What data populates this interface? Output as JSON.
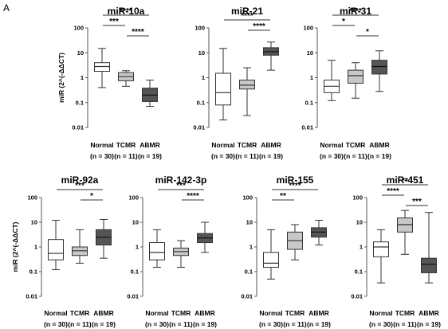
{
  "figure": {
    "panel_letter": "A",
    "ylabel": "miR (2^(-ΔΔCT)",
    "box_colors": {
      "Normal": "#ffffff",
      "TCMR": "#c8c8c8",
      "ABMR": "#555555"
    }
  },
  "chart_data": [
    {
      "type": "boxplot",
      "title": "miR-10a",
      "ylabel": "miR (2^(-ΔΔCT)",
      "yscale": "log",
      "ylim": [
        0.01,
        100
      ],
      "yticks": [
        "100",
        "10",
        "1",
        "0.1",
        "0.01"
      ],
      "categories": [
        "Normal",
        "TCMR",
        "ABMR"
      ],
      "n_labels": [
        "(n = 30)",
        "(n = 11)",
        "(n = 19)"
      ],
      "boxes": [
        {
          "name": "Normal",
          "min": 0.4,
          "q1": 1.8,
          "median": 2.8,
          "q3": 4.0,
          "max": 15
        },
        {
          "name": "TCMR",
          "min": 0.45,
          "q1": 0.75,
          "median": 1.1,
          "q3": 1.6,
          "max": 1.9
        },
        {
          "name": "ABMR",
          "min": 0.07,
          "q1": 0.11,
          "median": 0.2,
          "q3": 0.38,
          "max": 0.8
        }
      ],
      "significance": [
        {
          "from": 0,
          "to": 2,
          "label": "****"
        },
        {
          "from": 0,
          "to": 1,
          "label": "***"
        },
        {
          "from": 1,
          "to": 2,
          "label": "****"
        }
      ]
    },
    {
      "type": "boxplot",
      "title": "miR-21",
      "yscale": "log",
      "ylim": [
        0.01,
        100
      ],
      "yticks": [
        "100",
        "10",
        "1",
        "0.1",
        "0.01"
      ],
      "categories": [
        "Normal",
        "TCMR",
        "ABMR"
      ],
      "n_labels": [
        "(n = 30)",
        "(n = 11)",
        "(n = 19)"
      ],
      "boxes": [
        {
          "name": "Normal",
          "min": 0.02,
          "q1": 0.08,
          "median": 0.25,
          "q3": 1.5,
          "max": 15
        },
        {
          "name": "TCMR",
          "min": 0.03,
          "q1": 0.35,
          "median": 0.5,
          "q3": 0.8,
          "max": 2.5
        },
        {
          "name": "ABMR",
          "min": 2.0,
          "q1": 8.0,
          "median": 11,
          "q3": 16,
          "max": 27
        }
      ],
      "significance": [
        {
          "from": 0,
          "to": 2,
          "label": "****"
        },
        {
          "from": 1,
          "to": 2,
          "label": "****"
        }
      ]
    },
    {
      "type": "boxplot",
      "title": "miR-31",
      "yscale": "log",
      "ylim": [
        0.01,
        100
      ],
      "yticks": [
        "100",
        "10",
        "1",
        "0.1",
        "0.01"
      ],
      "categories": [
        "Normal",
        "TCMR",
        "ABMR"
      ],
      "n_labels": [
        "(n = 30)",
        "(n = 11)",
        "(n = 19)"
      ],
      "boxes": [
        {
          "name": "Normal",
          "min": 0.12,
          "q1": 0.25,
          "median": 0.45,
          "q3": 0.8,
          "max": 5.0
        },
        {
          "name": "TCMR",
          "min": 0.15,
          "q1": 0.6,
          "median": 1.2,
          "q3": 2.0,
          "max": 4.0
        },
        {
          "name": "ABMR",
          "min": 0.28,
          "q1": 1.4,
          "median": 2.8,
          "q3": 5.0,
          "max": 12
        }
      ],
      "significance": [
        {
          "from": 0,
          "to": 2,
          "label": "****"
        },
        {
          "from": 0,
          "to": 1,
          "label": "*"
        },
        {
          "from": 1,
          "to": 2,
          "label": "*"
        }
      ]
    },
    {
      "type": "boxplot",
      "title": "miR-92a",
      "ylabel": "miR (2^(-ΔΔCT)",
      "yscale": "log",
      "ylim": [
        0.01,
        100
      ],
      "yticks": [
        "100",
        "10",
        "1",
        "0.1",
        "0.01"
      ],
      "categories": [
        "Normal",
        "TCMR",
        "ABMR"
      ],
      "n_labels": [
        "(n = 30)",
        "(n = 11)",
        "(n = 19)"
      ],
      "boxes": [
        {
          "name": "Normal",
          "min": 0.12,
          "q1": 0.3,
          "median": 0.55,
          "q3": 2.0,
          "max": 12
        },
        {
          "name": "TCMR",
          "min": 0.22,
          "q1": 0.45,
          "median": 0.7,
          "q3": 1.0,
          "max": 5.0
        },
        {
          "name": "ABMR",
          "min": 0.35,
          "q1": 1.2,
          "median": 2.5,
          "q3": 5.0,
          "max": 13
        }
      ],
      "significance": [
        {
          "from": 0,
          "to": 2,
          "label": "***"
        },
        {
          "from": 1,
          "to": 2,
          "label": "*"
        }
      ]
    },
    {
      "type": "boxplot",
      "title": "miR-142-3p",
      "yscale": "log",
      "ylim": [
        0.01,
        100
      ],
      "yticks": [
        "100",
        "10",
        "1",
        "0.1",
        "0.01"
      ],
      "categories": [
        "Normal",
        "TCMR",
        "ABMR"
      ],
      "n_labels": [
        "(n = 30)",
        "(n = 11)",
        "(n = 19)"
      ],
      "boxes": [
        {
          "name": "Normal",
          "min": 0.15,
          "q1": 0.3,
          "median": 0.6,
          "q3": 1.5,
          "max": 5.0
        },
        {
          "name": "TCMR",
          "min": 0.15,
          "q1": 0.45,
          "median": 0.65,
          "q3": 0.9,
          "max": 1.8
        },
        {
          "name": "ABMR",
          "min": 0.6,
          "q1": 1.5,
          "median": 2.3,
          "q3": 3.5,
          "max": 10
        }
      ],
      "significance": [
        {
          "from": 0,
          "to": 2,
          "label": "***"
        },
        {
          "from": 1,
          "to": 2,
          "label": "****"
        }
      ]
    },
    {
      "type": "boxplot",
      "title": "miR-155",
      "yscale": "log",
      "ylim": [
        0.01,
        100
      ],
      "yticks": [
        "100",
        "10",
        "1",
        "0.1",
        "0.01"
      ],
      "categories": [
        "Normal",
        "TCMR",
        "ABMR"
      ],
      "n_labels": [
        "(n = 30)",
        "(n = 11)",
        "(n = 19)"
      ],
      "boxes": [
        {
          "name": "Normal",
          "min": 0.05,
          "q1": 0.15,
          "median": 0.22,
          "q3": 0.6,
          "max": 5.0
        },
        {
          "name": "TCMR",
          "min": 0.3,
          "q1": 0.8,
          "median": 1.8,
          "q3": 4.0,
          "max": 8.0
        },
        {
          "name": "ABMR",
          "min": 1.2,
          "q1": 2.5,
          "median": 4.0,
          "q3": 6.0,
          "max": 12
        }
      ],
      "significance": [
        {
          "from": 0,
          "to": 2,
          "label": "****"
        },
        {
          "from": 0,
          "to": 1,
          "label": "**"
        }
      ]
    },
    {
      "type": "boxplot",
      "title": "miR-451",
      "yscale": "log",
      "ylim": [
        0.01,
        100
      ],
      "yticks": [
        "100",
        "10",
        "1",
        "0.1",
        "0.01"
      ],
      "categories": [
        "Normal",
        "TCMR",
        "ABMR"
      ],
      "n_labels": [
        "(n = 30)",
        "(n = 11)",
        "(n = 19)"
      ],
      "boxes": [
        {
          "name": "Normal",
          "min": 0.035,
          "q1": 0.4,
          "median": 1.0,
          "q3": 1.6,
          "max": 5.0
        },
        {
          "name": "TCMR",
          "min": 0.5,
          "q1": 4.0,
          "median": 8.0,
          "q3": 15,
          "max": 30
        },
        {
          "name": "ABMR",
          "min": 0.035,
          "q1": 0.09,
          "median": 0.2,
          "q3": 0.35,
          "max": 25
        }
      ],
      "significance": [
        {
          "from": 0,
          "to": 2,
          "label": "**"
        },
        {
          "from": 0,
          "to": 1,
          "label": "****"
        },
        {
          "from": 1,
          "to": 2,
          "label": "***"
        }
      ]
    }
  ]
}
